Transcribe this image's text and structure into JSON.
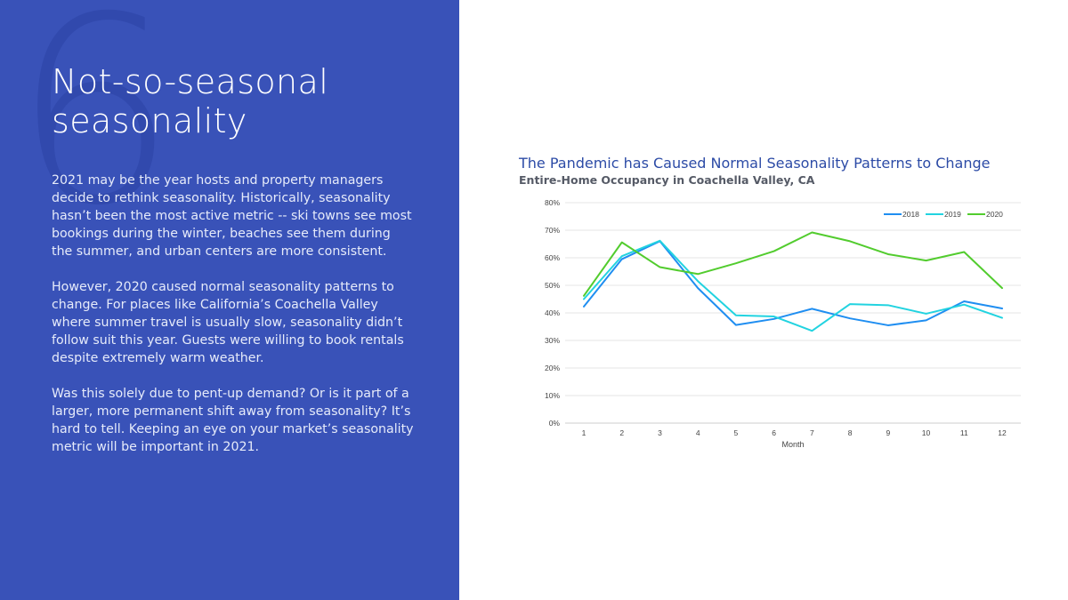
{
  "slide": {
    "number": "6",
    "title_line1": "Not-so-seasonal",
    "title_line2": "seasonality",
    "paragraphs": [
      "2021 may be the year hosts and property managers decide to rethink seasonality. Historically, seasonality hasn’t been the most active metric -- ski towns see most bookings during the winter, beaches see them during the summer, and urban centers are more consistent.",
      "However, 2020 caused normal seasonality patterns to change. For places like California’s Coachella Valley where summer travel is usually slow, seasonality didn’t follow suit this year. Guests were willing to book rentals despite extremely warm weather.",
      "Was this solely due to pent-up demand? Or is it part of a larger, more permanent shift away from seasonality? It’s hard to tell. Keeping an eye on your market’s seasonality metric will be important in 2021."
    ],
    "colors": {
      "panel": "#3952b8",
      "number": "#3149ad"
    }
  },
  "chart_data": {
    "type": "line",
    "title": "The Pandemic has Caused Normal Seasonality Patterns to Change",
    "subtitle": "Entire-Home Occupancy in Coachella Valley, CA",
    "xlabel": "Month",
    "ylabel": "",
    "x": [
      1,
      2,
      3,
      4,
      5,
      6,
      7,
      8,
      9,
      10,
      11,
      12
    ],
    "ylim": [
      0,
      80
    ],
    "yticks": [
      0,
      10,
      20,
      30,
      40,
      50,
      60,
      70,
      80
    ],
    "ytick_labels": [
      "0%",
      "10%",
      "20%",
      "30%",
      "40%",
      "50%",
      "60%",
      "70%",
      "80%"
    ],
    "grid": true,
    "legend_position": "top-right",
    "series": [
      {
        "name": "2018",
        "color": "#1f8ef1",
        "values": [
          42.3,
          59.5,
          66.0,
          49.0,
          35.6,
          37.8,
          41.5,
          38.0,
          35.5,
          37.3,
          44.2,
          41.6
        ]
      },
      {
        "name": "2019",
        "color": "#22d3e0",
        "values": [
          45.0,
          60.6,
          66.2,
          51.5,
          39.1,
          38.7,
          33.5,
          43.2,
          42.8,
          39.7,
          43.0,
          38.2
        ]
      },
      {
        "name": "2020",
        "color": "#52cc2e",
        "values": [
          46.2,
          65.6,
          56.6,
          54.1,
          58.0,
          62.4,
          69.2,
          66.0,
          61.3,
          59.0,
          62.1,
          49.0
        ]
      }
    ]
  }
}
